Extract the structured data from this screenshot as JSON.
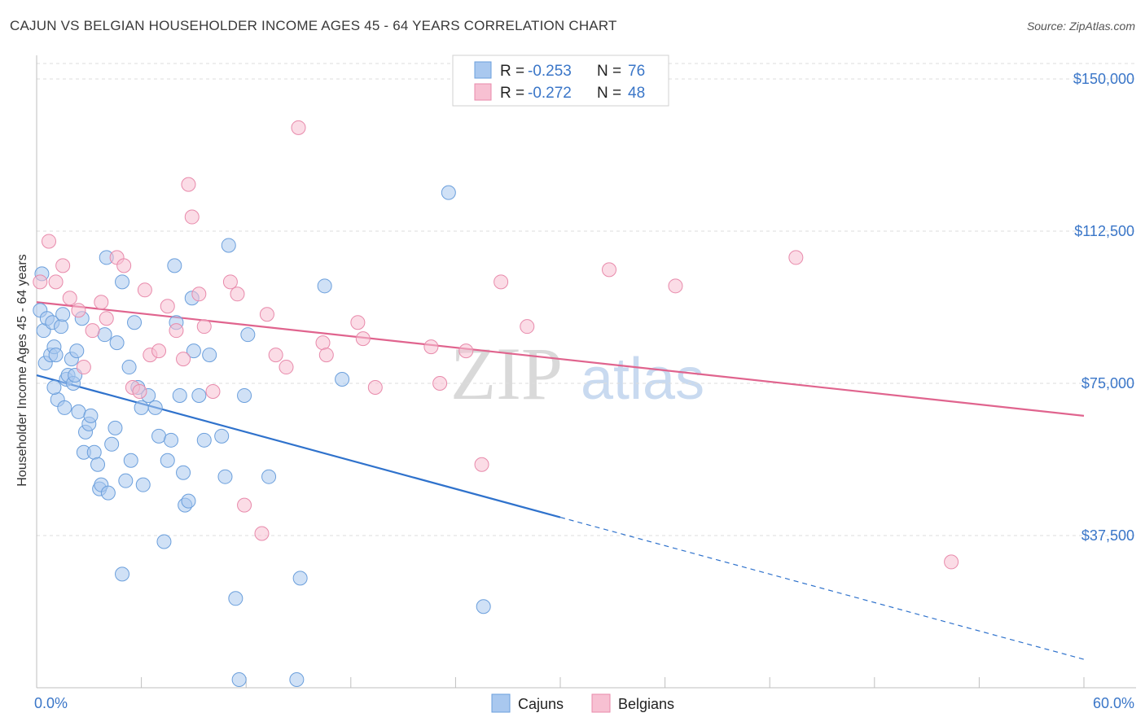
{
  "header": {
    "title": "CAJUN VS BELGIAN HOUSEHOLDER INCOME AGES 45 - 64 YEARS CORRELATION CHART",
    "source": "Source: ZipAtlas.com"
  },
  "watermark": {
    "zip": "ZIP",
    "atlas": "atlas"
  },
  "legend": {
    "r_label": "R =",
    "n_label": "N =",
    "cajun_r": "-0.253",
    "cajun_n": "76",
    "belgian_r": "-0.272",
    "belgian_n": "48"
  },
  "bottom_legend": {
    "cajuns": "Cajuns",
    "belgians": "Belgians"
  },
  "colors": {
    "cajun_fill": "#a9c8ef",
    "cajun_stroke": "#6b9fdc",
    "cajun_line": "#2f72cc",
    "belgian_fill": "#f7c0d2",
    "belgian_stroke": "#e88aab",
    "belgian_line": "#e0648e",
    "tick_text": "#3a76c8"
  },
  "chart_data": {
    "type": "scatter",
    "title": "CAJUN VS BELGIAN HOUSEHOLDER INCOME AGES 45 - 64 YEARS CORRELATION CHART",
    "xlabel": "",
    "ylabel": "Householder Income Ages 45 - 64 years",
    "xlim": [
      0,
      60
    ],
    "ylim": [
      0,
      160000
    ],
    "x_tick_labels": [
      "0.0%",
      "60.0%"
    ],
    "y_ticks": [
      37500,
      75000,
      112500,
      150000
    ],
    "y_tick_labels": [
      "$37,500",
      "$75,000",
      "$112,500",
      "$150,000"
    ],
    "series": [
      {
        "name": "Cajuns",
        "R": -0.253,
        "N": 76,
        "trend": {
          "x0": 0,
          "y0": 77000,
          "x1": 30,
          "y1": 42000,
          "dashed_to_x": 60,
          "dashed_to_y": 7000
        },
        "points": [
          [
            0.2,
            93000
          ],
          [
            0.3,
            102000
          ],
          [
            0.4,
            88000
          ],
          [
            0.5,
            80000
          ],
          [
            0.6,
            91000
          ],
          [
            0.8,
            82000
          ],
          [
            0.9,
            90000
          ],
          [
            1.0,
            84000
          ],
          [
            1.1,
            82000
          ],
          [
            1.2,
            71000
          ],
          [
            1.4,
            89000
          ],
          [
            1.5,
            92000
          ],
          [
            1.6,
            69000
          ],
          [
            1.7,
            76000
          ],
          [
            1.8,
            77000
          ],
          [
            2.0,
            81000
          ],
          [
            2.1,
            75000
          ],
          [
            2.2,
            77000
          ],
          [
            2.3,
            83000
          ],
          [
            2.4,
            68000
          ],
          [
            2.6,
            91000
          ],
          [
            2.7,
            58000
          ],
          [
            2.8,
            63000
          ],
          [
            3.0,
            65000
          ],
          [
            3.1,
            67000
          ],
          [
            3.3,
            58000
          ],
          [
            3.5,
            55000
          ],
          [
            3.6,
            49000
          ],
          [
            3.7,
            50000
          ],
          [
            3.9,
            87000
          ],
          [
            4.0,
            106000
          ],
          [
            4.1,
            48000
          ],
          [
            4.3,
            60000
          ],
          [
            4.5,
            64000
          ],
          [
            4.6,
            85000
          ],
          [
            4.9,
            100000
          ],
          [
            5.1,
            51000
          ],
          [
            5.3,
            79000
          ],
          [
            5.4,
            56000
          ],
          [
            5.6,
            90000
          ],
          [
            5.8,
            74000
          ],
          [
            6.0,
            69000
          ],
          [
            6.1,
            50000
          ],
          [
            6.4,
            72000
          ],
          [
            6.8,
            69000
          ],
          [
            7.0,
            62000
          ],
          [
            7.3,
            36000
          ],
          [
            7.5,
            56000
          ],
          [
            7.7,
            61000
          ],
          [
            7.9,
            104000
          ],
          [
            8.0,
            90000
          ],
          [
            8.2,
            72000
          ],
          [
            8.4,
            53000
          ],
          [
            8.5,
            45000
          ],
          [
            8.7,
            46000
          ],
          [
            8.9,
            96000
          ],
          [
            9.0,
            83000
          ],
          [
            9.3,
            72000
          ],
          [
            9.6,
            61000
          ],
          [
            9.9,
            82000
          ],
          [
            10.6,
            62000
          ],
          [
            10.8,
            52000
          ],
          [
            11.0,
            109000
          ],
          [
            11.4,
            22000
          ],
          [
            11.6,
            2000
          ],
          [
            11.9,
            72000
          ],
          [
            12.1,
            87000
          ],
          [
            13.3,
            52000
          ],
          [
            14.9,
            2000
          ],
          [
            15.1,
            27000
          ],
          [
            16.5,
            99000
          ],
          [
            17.5,
            76000
          ],
          [
            4.9,
            28000
          ],
          [
            23.6,
            122000
          ],
          [
            25.6,
            20000
          ],
          [
            1.0,
            74000
          ]
        ]
      },
      {
        "name": "Belgians",
        "R": -0.272,
        "N": 48,
        "trend": {
          "x0": 0,
          "y0": 95000,
          "x1": 60,
          "y1": 67000
        },
        "points": [
          [
            0.2,
            100000
          ],
          [
            0.7,
            110000
          ],
          [
            1.1,
            100000
          ],
          [
            1.5,
            104000
          ],
          [
            1.9,
            96000
          ],
          [
            2.4,
            93000
          ],
          [
            2.7,
            79000
          ],
          [
            3.2,
            88000
          ],
          [
            3.7,
            95000
          ],
          [
            4.0,
            91000
          ],
          [
            4.6,
            106000
          ],
          [
            5.0,
            104000
          ],
          [
            5.5,
            74000
          ],
          [
            5.9,
            73000
          ],
          [
            6.2,
            98000
          ],
          [
            6.5,
            82000
          ],
          [
            7.0,
            83000
          ],
          [
            7.5,
            94000
          ],
          [
            8.0,
            88000
          ],
          [
            8.4,
            81000
          ],
          [
            8.7,
            124000
          ],
          [
            8.9,
            116000
          ],
          [
            9.3,
            97000
          ],
          [
            9.6,
            89000
          ],
          [
            10.1,
            73000
          ],
          [
            11.1,
            100000
          ],
          [
            11.5,
            97000
          ],
          [
            11.9,
            45000
          ],
          [
            12.9,
            38000
          ],
          [
            13.2,
            92000
          ],
          [
            13.7,
            82000
          ],
          [
            14.3,
            79000
          ],
          [
            15.0,
            138000
          ],
          [
            16.4,
            85000
          ],
          [
            16.6,
            82000
          ],
          [
            18.4,
            90000
          ],
          [
            18.7,
            86000
          ],
          [
            19.4,
            74000
          ],
          [
            22.6,
            84000
          ],
          [
            23.1,
            75000
          ],
          [
            24.6,
            83000
          ],
          [
            25.5,
            55000
          ],
          [
            26.6,
            100000
          ],
          [
            28.1,
            89000
          ],
          [
            32.8,
            103000
          ],
          [
            36.6,
            99000
          ],
          [
            43.5,
            106000
          ],
          [
            52.4,
            31000
          ]
        ]
      }
    ]
  }
}
